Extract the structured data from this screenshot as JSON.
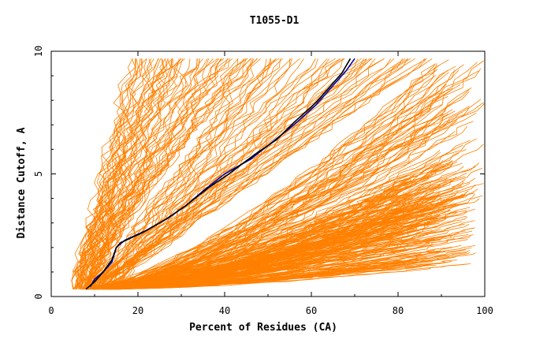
{
  "chart_data": {
    "type": "line",
    "title": "T1055-D1",
    "xlabel": "Percent of Residues (CA)",
    "ylabel": "Distance Cutoff, A",
    "xlim": [
      0,
      100
    ],
    "ylim": [
      0,
      10
    ],
    "x_ticks": [
      "0",
      "20",
      "40",
      "60",
      "80",
      "100"
    ],
    "y_ticks": [
      "0",
      "5",
      "10"
    ],
    "grid": false,
    "legend": "none",
    "colors": {
      "models": "#ff8000",
      "highlight_a": "#0000aa",
      "highlight_b": "#000000",
      "axes": "#000000"
    },
    "series": [
      {
        "role": "highlight",
        "color": "#0000aa",
        "x": [
          9,
          10,
          12,
          14,
          15,
          17,
          22,
          27,
          31,
          35,
          40,
          46,
          51,
          56,
          61,
          65,
          68,
          70
        ],
        "y": [
          0.4,
          0.7,
          1.0,
          1.4,
          2.0,
          2.3,
          2.7,
          3.2,
          3.7,
          4.3,
          5.0,
          5.6,
          6.3,
          7.0,
          7.8,
          8.6,
          9.2,
          9.7
        ]
      },
      {
        "role": "highlight",
        "color": "#000000",
        "x": [
          8,
          10,
          12,
          14,
          15,
          16,
          21,
          26,
          31,
          36,
          41,
          47,
          52,
          56,
          61,
          64,
          67,
          69
        ],
        "y": [
          0.3,
          0.6,
          1.0,
          1.5,
          2.0,
          2.2,
          2.6,
          3.1,
          3.7,
          4.4,
          5.0,
          5.8,
          6.4,
          7.1,
          7.9,
          8.5,
          9.1,
          9.7
        ]
      }
    ],
    "model_bands": [
      {
        "count": 60,
        "x0": [
          5,
          10
        ],
        "x_end": [
          18,
          48
        ],
        "y_end": [
          9.7,
          9.7
        ],
        "shape": 0.85
      },
      {
        "count": 50,
        "x0": [
          8,
          14
        ],
        "x_end": [
          45,
          88
        ],
        "y_end": [
          9.7,
          9.7
        ],
        "shape": 1.0
      },
      {
        "count": 90,
        "x0": [
          7,
          15
        ],
        "x_end": [
          88,
          100
        ],
        "y_end": [
          3.5,
          9.7
        ],
        "shape": 1.4
      },
      {
        "count": 160,
        "x0": [
          8,
          16
        ],
        "x_end": [
          80,
          98
        ],
        "y_end": [
          1.2,
          5.0
        ],
        "shape": 1.6
      }
    ]
  }
}
